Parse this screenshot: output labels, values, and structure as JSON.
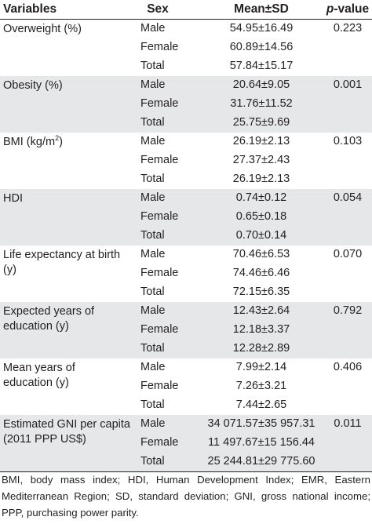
{
  "headers": {
    "variables": "Variables",
    "sex": "Sex",
    "mean_sd": "Mean±SD",
    "p_value_italic": "p",
    "p_value_rest": "-value"
  },
  "groups": [
    {
      "variable": "Overweight (%)",
      "p_value": "0.223",
      "rows": [
        {
          "sex": "Male",
          "mean_sd": "54.95±16.49"
        },
        {
          "sex": "Female",
          "mean_sd": "60.89±14.56"
        },
        {
          "sex": "Total",
          "mean_sd": "57.84±15.17"
        }
      ]
    },
    {
      "variable": "Obesity (%)",
      "p_value": "0.001",
      "rows": [
        {
          "sex": "Male",
          "mean_sd": "20.64±9.05"
        },
        {
          "sex": "Female",
          "mean_sd": "31.76±11.52"
        },
        {
          "sex": "Total",
          "mean_sd": "25.75±9.69"
        }
      ]
    },
    {
      "variable_base": "BMI (kg/m",
      "variable_sup": "2",
      "variable_end": ")",
      "p_value": "0.103",
      "rows": [
        {
          "sex": "Male",
          "mean_sd": "26.19±2.13"
        },
        {
          "sex": "Female",
          "mean_sd": "27.37±2.43"
        },
        {
          "sex": "Total",
          "mean_sd": "26.19±2.13"
        }
      ]
    },
    {
      "variable": "HDI",
      "p_value": "0.054",
      "rows": [
        {
          "sex": "Male",
          "mean_sd": "0.74±0.12"
        },
        {
          "sex": "Female",
          "mean_sd": "0.65±0.18"
        },
        {
          "sex": "Total",
          "mean_sd": "0.70±0.14"
        }
      ]
    },
    {
      "variable": "Life expectancy at birth (y)",
      "p_value": "0.070",
      "rows": [
        {
          "sex": "Male",
          "mean_sd": "70.46±6.53"
        },
        {
          "sex": "Female",
          "mean_sd": "74.46±6.46"
        },
        {
          "sex": "Total",
          "mean_sd": "72.15±6.35"
        }
      ]
    },
    {
      "variable": "Expected years of education (y)",
      "p_value": "0.792",
      "rows": [
        {
          "sex": "Male",
          "mean_sd": "12.43±2.64"
        },
        {
          "sex": "Female",
          "mean_sd": "12.18±3.37"
        },
        {
          "sex": "Total",
          "mean_sd": "12.28±2.89"
        }
      ]
    },
    {
      "variable": "Mean years of education (y)",
      "p_value": "0.406",
      "rows": [
        {
          "sex": "Male",
          "mean_sd": "7.99±2.14"
        },
        {
          "sex": "Female",
          "mean_sd": "7.26±3.21"
        },
        {
          "sex": "Total",
          "mean_sd": "7.44±2.65"
        }
      ]
    },
    {
      "variable": "Estimated GNI per capita (2011 PPP US$)",
      "p_value": "0.011",
      "rows": [
        {
          "sex": "Male",
          "mean_sd": "34 071.57±35 957.31"
        },
        {
          "sex": "Female",
          "mean_sd": "11 497.67±15 156.44"
        },
        {
          "sex": "Total",
          "mean_sd": "25 244.81±29 775.60"
        }
      ]
    }
  ],
  "footnote": "BMI, body mass index; HDI, Human Development Index; EMR, Eastern Mediterranean Region; SD, standard deviation; GNI, gross national income; PPP, purchasing power parity."
}
